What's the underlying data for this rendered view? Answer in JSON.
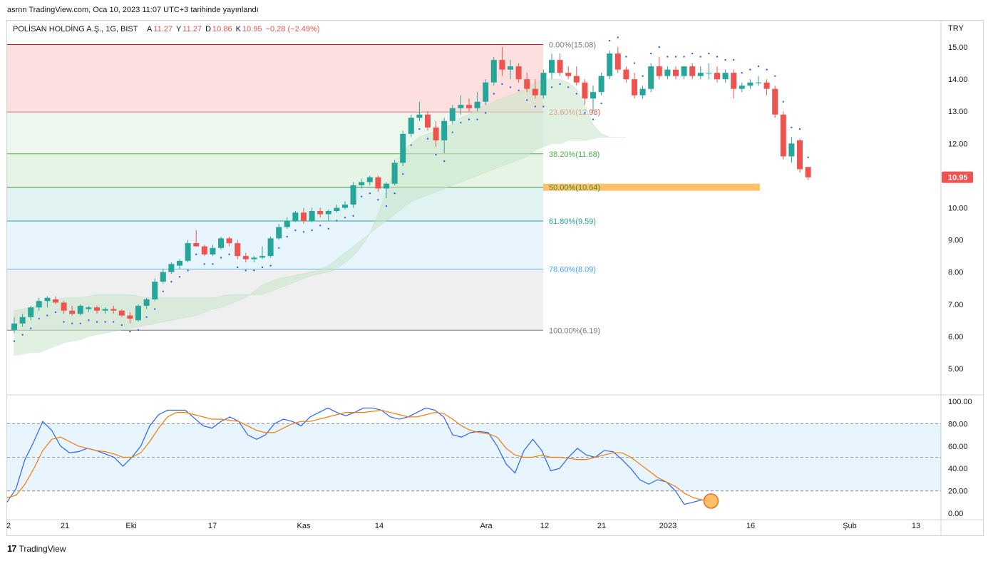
{
  "header": {
    "published_text": "asrnn TradingView.com, Oca 10, 2023 11:07 UTC+3 tarihinde yayınlandı"
  },
  "legend": {
    "symbol": "POLİSAN HOLDİNG A.Ş., 1G, BIST",
    "open_label": "A",
    "open": "11.27",
    "high_label": "Y",
    "high": "11.27",
    "low_label": "D",
    "low": "10.86",
    "close_label": "K",
    "close": "10.95",
    "change": "−0.28 (−2.49%)"
  },
  "currency": "TRY",
  "last_price_badge": "10.95",
  "footer": {
    "brand": "TradingView",
    "logo_text": "17"
  },
  "colors": {
    "up": "#26a69a",
    "down": "#ef5350",
    "rsi_k": "#2962ff",
    "rsi_d": "#f57c00",
    "fib_highlight": "#ffb74d",
    "cloud": "#c8e6c9"
  },
  "chart_data": [
    {
      "type": "candlestick",
      "ylim": [
        4.2,
        15.8
      ],
      "y_ticks": [
        "15.00",
        "14.00",
        "13.00",
        "12.00",
        "11.00",
        "10.00",
        "9.00",
        "8.00",
        "7.00",
        "6.00",
        "5.00"
      ],
      "x_tick_labels": [
        "2",
        "21",
        "Eki",
        "17",
        "Kas",
        "14",
        "Ara",
        "12",
        "21",
        "2023",
        "16",
        "Şub",
        "13"
      ],
      "fibonacci": [
        {
          "label": "0.00%(15.08)",
          "level": 15.08
        },
        {
          "label": "23.60%(12.98)",
          "level": 12.98
        },
        {
          "label": "38.20%(11.68)",
          "level": 11.68
        },
        {
          "label": "50.00%(10.64)",
          "level": 10.64
        },
        {
          "label": "61.80%(9.59)",
          "level": 9.59
        },
        {
          "label": "78.60%(8.09)",
          "level": 8.09
        },
        {
          "label": "100.00%(6.19)",
          "level": 6.19
        }
      ],
      "candles": [
        [
          6.2,
          6.6,
          6.1,
          6.4
        ],
        [
          6.4,
          6.7,
          6.3,
          6.6
        ],
        [
          6.6,
          6.95,
          6.5,
          6.9
        ],
        [
          6.9,
          7.2,
          6.8,
          7.1
        ],
        [
          7.1,
          7.25,
          6.9,
          7.2
        ],
        [
          7.15,
          7.25,
          7.0,
          7.05
        ],
        [
          7.05,
          7.1,
          6.7,
          6.8
        ],
        [
          6.8,
          6.95,
          6.65,
          6.7
        ],
        [
          6.7,
          7.0,
          6.65,
          6.95
        ],
        [
          6.85,
          6.95,
          6.75,
          6.9
        ],
        [
          6.9,
          6.95,
          6.7,
          6.8
        ],
        [
          6.8,
          6.9,
          6.7,
          6.85
        ],
        [
          6.85,
          6.95,
          6.7,
          6.8
        ],
        [
          6.8,
          6.85,
          6.6,
          6.65
        ],
        [
          6.65,
          6.75,
          6.4,
          6.55
        ],
        [
          6.5,
          7.0,
          6.45,
          6.95
        ],
        [
          6.95,
          7.2,
          6.85,
          7.15
        ],
        [
          7.15,
          7.8,
          7.1,
          7.7
        ],
        [
          7.7,
          8.1,
          7.65,
          8.0
        ],
        [
          8.0,
          8.3,
          7.95,
          8.25
        ],
        [
          8.2,
          8.4,
          8.1,
          8.35
        ],
        [
          8.35,
          9.0,
          8.3,
          8.9
        ],
        [
          8.9,
          9.3,
          8.8,
          8.8
        ],
        [
          8.8,
          8.85,
          8.5,
          8.55
        ],
        [
          8.55,
          8.85,
          8.5,
          8.75
        ],
        [
          8.75,
          9.1,
          8.7,
          9.05
        ],
        [
          9.05,
          9.1,
          8.8,
          8.9
        ],
        [
          8.9,
          9.0,
          8.4,
          8.5
        ],
        [
          8.5,
          8.6,
          8.3,
          8.4
        ],
        [
          8.4,
          8.5,
          8.3,
          8.45
        ],
        [
          8.45,
          8.8,
          8.4,
          8.5
        ],
        [
          8.5,
          9.1,
          8.45,
          9.05
        ],
        [
          9.05,
          9.5,
          9.0,
          9.4
        ],
        [
          9.4,
          9.7,
          9.35,
          9.6
        ],
        [
          9.6,
          9.9,
          9.55,
          9.85
        ],
        [
          9.85,
          10.0,
          9.5,
          9.6
        ],
        [
          9.6,
          10.0,
          9.55,
          9.9
        ],
        [
          9.9,
          10.0,
          9.7,
          9.8
        ],
        [
          9.8,
          9.95,
          9.6,
          9.9
        ],
        [
          9.9,
          10.1,
          9.85,
          10.0
        ],
        [
          10.0,
          10.2,
          9.95,
          10.1
        ],
        [
          10.1,
          10.8,
          10.0,
          10.7
        ],
        [
          10.7,
          10.9,
          10.6,
          10.8
        ],
        [
          10.8,
          11.0,
          10.7,
          10.95
        ],
        [
          10.95,
          11.0,
          10.5,
          10.6
        ],
        [
          10.6,
          10.8,
          10.3,
          10.75
        ],
        [
          10.75,
          11.5,
          10.7,
          11.4
        ],
        [
          11.4,
          12.4,
          11.3,
          12.3
        ],
        [
          12.3,
          12.9,
          12.2,
          12.8
        ],
        [
          12.8,
          13.3,
          12.7,
          12.9
        ],
        [
          12.9,
          13.0,
          12.4,
          12.5
        ],
        [
          12.5,
          12.7,
          11.9,
          12.1
        ],
        [
          12.1,
          12.8,
          11.7,
          12.7
        ],
        [
          12.7,
          13.2,
          12.6,
          13.1
        ],
        [
          13.1,
          13.5,
          12.9,
          13.2
        ],
        [
          13.2,
          13.4,
          13.0,
          13.1
        ],
        [
          13.1,
          13.6,
          13.0,
          13.3
        ],
        [
          13.3,
          14.0,
          13.2,
          13.9
        ],
        [
          13.9,
          14.7,
          13.8,
          14.6
        ],
        [
          14.6,
          15.0,
          14.1,
          14.3
        ],
        [
          14.3,
          14.6,
          14.0,
          14.4
        ],
        [
          14.4,
          14.5,
          13.9,
          14.0
        ],
        [
          14.0,
          14.2,
          13.6,
          13.7
        ],
        [
          13.7,
          14.0,
          13.4,
          13.5
        ],
        [
          13.5,
          14.3,
          13.4,
          14.2
        ],
        [
          14.2,
          14.8,
          14.0,
          14.6
        ],
        [
          14.6,
          14.8,
          14.1,
          14.2
        ],
        [
          14.2,
          14.4,
          14.0,
          14.1
        ],
        [
          14.1,
          14.4,
          13.8,
          13.9
        ],
        [
          13.9,
          14.0,
          13.2,
          13.4
        ],
        [
          13.4,
          13.8,
          13.0,
          13.6
        ],
        [
          13.6,
          14.2,
          13.5,
          14.1
        ],
        [
          14.1,
          14.9,
          14.0,
          14.8
        ],
        [
          14.8,
          15.0,
          14.2,
          14.3
        ],
        [
          14.3,
          14.4,
          13.9,
          14.0
        ],
        [
          14.0,
          14.2,
          13.4,
          13.5
        ],
        [
          13.5,
          13.8,
          13.4,
          13.7
        ],
        [
          13.7,
          14.5,
          13.6,
          14.4
        ],
        [
          14.4,
          14.7,
          14.0,
          14.1
        ],
        [
          14.1,
          14.4,
          14.0,
          14.3
        ],
        [
          14.3,
          14.4,
          14.0,
          14.1
        ],
        [
          14.1,
          14.4,
          14.0,
          14.4
        ],
        [
          14.4,
          14.5,
          14.0,
          14.1
        ],
        [
          14.1,
          14.4,
          14.0,
          14.2
        ],
        [
          14.2,
          14.5,
          14.0,
          14.2
        ],
        [
          14.2,
          14.4,
          13.9,
          14.0
        ],
        [
          14.0,
          14.3,
          13.9,
          14.2
        ],
        [
          14.2,
          14.3,
          13.4,
          13.7
        ],
        [
          13.7,
          13.9,
          13.6,
          13.8
        ],
        [
          13.8,
          14.0,
          13.7,
          13.9
        ],
        [
          13.9,
          14.1,
          13.8,
          13.9
        ],
        [
          13.9,
          14.0,
          13.5,
          13.7
        ],
        [
          13.7,
          13.8,
          12.8,
          12.9
        ],
        [
          12.9,
          13.0,
          11.5,
          11.6
        ],
        [
          11.6,
          12.2,
          11.4,
          12.0
        ],
        [
          12.1,
          12.15,
          11.1,
          11.2
        ],
        [
          11.27,
          11.27,
          10.86,
          10.95
        ]
      ],
      "cloud_upper": [
        6.8,
        6.85,
        6.9,
        7.0,
        7.1,
        7.15,
        7.2,
        7.2,
        7.2,
        7.25,
        7.3,
        7.3,
        7.3,
        7.3,
        7.3,
        7.25,
        7.2,
        7.2,
        7.2,
        7.2,
        7.2,
        7.2,
        7.2,
        7.2,
        7.2,
        7.25,
        7.3,
        7.3,
        7.3,
        7.3,
        7.3,
        7.4,
        7.5,
        7.6,
        7.7,
        7.8,
        7.9,
        7.95,
        8.0,
        8.1,
        8.3,
        8.5,
        8.8,
        9.2,
        9.8,
        10.5,
        11.2,
        11.8,
        12.0,
        12.2,
        12.3,
        12.4,
        12.5,
        12.6,
        12.8,
        12.9,
        13.1,
        13.2,
        13.3,
        13.4,
        13.5,
        13.6,
        13.7,
        13.9,
        14.0,
        14.0,
        14.0,
        13.9,
        13.7,
        13.2,
        12.6,
        12.3,
        12.2,
        12.2,
        12.2
      ],
      "cloud_lower": [
        5.4,
        5.45,
        5.5,
        5.5,
        5.6,
        5.7,
        5.8,
        5.85,
        5.9,
        6.0,
        6.05,
        6.1,
        6.15,
        6.2,
        6.25,
        6.3,
        6.35,
        6.4,
        6.45,
        6.5,
        6.55,
        6.6,
        6.65,
        6.75,
        6.85,
        6.9,
        7.0,
        7.1,
        7.2,
        7.4,
        7.6,
        7.7,
        7.8,
        7.85,
        7.9,
        7.95,
        8.0,
        8.1,
        8.2,
        8.4,
        8.6,
        8.8,
        9.0,
        9.2,
        9.4,
        9.6,
        9.8,
        10.0,
        10.2,
        10.3,
        10.4,
        10.5,
        10.6,
        10.7,
        10.8,
        10.9,
        11.0,
        11.1,
        11.2,
        11.3,
        11.4,
        11.5,
        11.6,
        11.8,
        11.9,
        12.0,
        12.0,
        12.1,
        12.1,
        12.1,
        12.15,
        12.2,
        12.2,
        12.2,
        12.2
      ],
      "last_price": 10.95
    },
    {
      "type": "line",
      "ylim": [
        -5,
        105
      ],
      "y_ticks": [
        "100.00",
        "80.00",
        "60.00",
        "40.00",
        "20.00",
        "0.00"
      ],
      "band": [
        20,
        80
      ],
      "midline": 50,
      "series": [
        {
          "values": [
            10,
            22,
            48,
            64,
            82,
            74,
            60,
            54,
            55,
            58,
            56,
            53,
            50,
            42,
            50,
            60,
            78,
            88,
            92,
            92,
            92,
            85,
            78,
            76,
            82,
            86,
            82,
            70,
            66,
            70,
            80,
            84,
            82,
            78,
            86,
            90,
            94,
            90,
            87,
            90,
            94,
            94,
            92,
            86,
            84,
            86,
            90,
            94,
            92,
            86,
            70,
            68,
            72,
            73,
            72,
            60,
            44,
            36,
            56,
            66,
            56,
            38,
            40,
            50,
            58,
            52,
            50,
            56,
            55,
            48,
            40,
            30,
            26,
            30,
            28,
            20,
            8,
            10,
            12,
            11
          ]
        },
        {
          "values": [
            14,
            16,
            26,
            40,
            56,
            66,
            68,
            64,
            60,
            58,
            56,
            55,
            53,
            50,
            50,
            54,
            64,
            76,
            86,
            90,
            90,
            88,
            86,
            84,
            84,
            83,
            82,
            78,
            74,
            72,
            72,
            76,
            80,
            82,
            82,
            84,
            86,
            88,
            90,
            90,
            90,
            91,
            92,
            90,
            88,
            86,
            86,
            88,
            90,
            89,
            84,
            78,
            74,
            72,
            71,
            68,
            58,
            52,
            50,
            50,
            52,
            50,
            50,
            49,
            48,
            48,
            50,
            52,
            54,
            54,
            50,
            44,
            38,
            32,
            28,
            24,
            18,
            14,
            12,
            11
          ]
        }
      ]
    }
  ]
}
